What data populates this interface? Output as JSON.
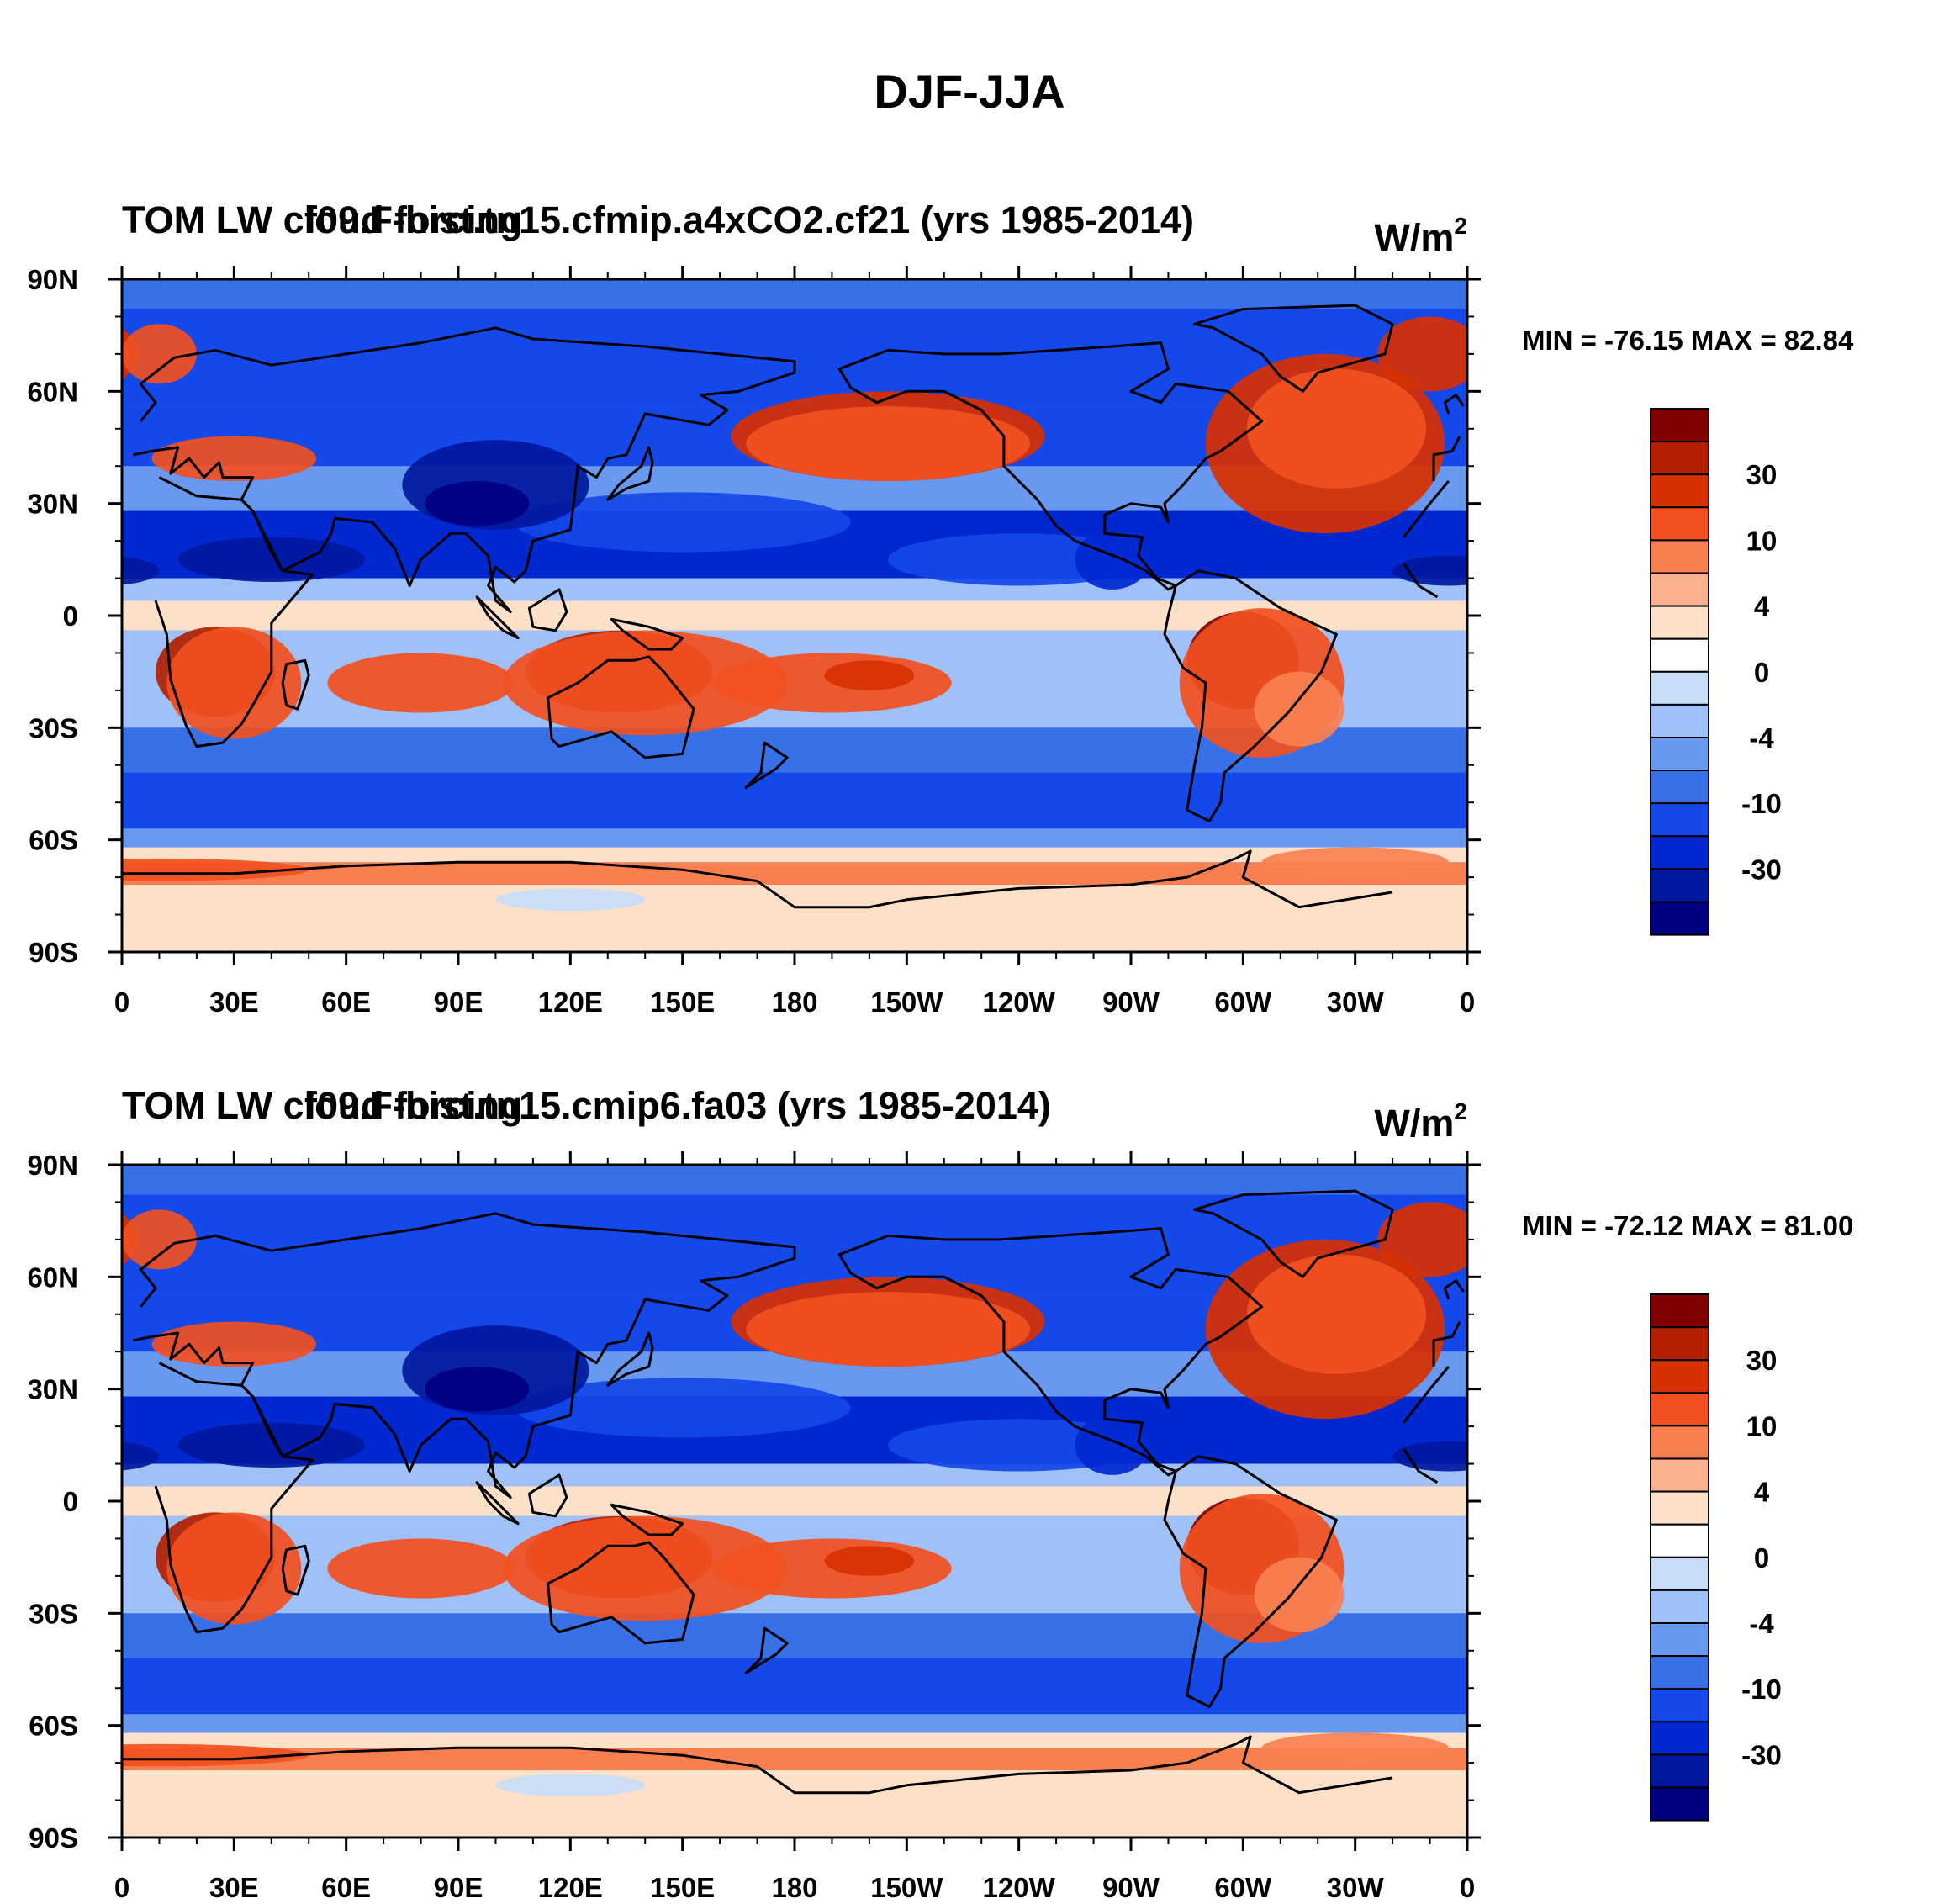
{
  "figure_title": "DJF-JJA",
  "panels": [
    {
      "left_title": "TOM LW cloud forcing",
      "center_title": "f09.F-hist.tn15.cfmip.a4xCO2.cf21 (yrs 1985-2014)",
      "units_base": "W/m",
      "units_exp": "2",
      "min_max": "MIN = -76.15 MAX =  82.84"
    },
    {
      "left_title": "TOM LW cloud forcing",
      "center_title": "f09.F-hist.tn15.cmip6.fa03 (yrs 1985-2014)",
      "units_base": "W/m",
      "units_exp": "2",
      "min_max": "MIN = -72.12 MAX =  81.00"
    }
  ],
  "axes": {
    "lat_labels": [
      "90N",
      "60N",
      "30N",
      "0",
      "30S",
      "60S",
      "90S"
    ],
    "lon_labels": [
      "0",
      "30E",
      "60E",
      "90E",
      "120E",
      "150E",
      "180",
      "150W",
      "120W",
      "90W",
      "60W",
      "30W",
      "0"
    ]
  },
  "colorbar": {
    "labels": [
      "30",
      "10",
      "4",
      "0",
      "-4",
      "-10",
      "-30"
    ],
    "colors": [
      "#800000",
      "#b22000",
      "#d83000",
      "#f25020",
      "#f88050",
      "#fcb090",
      "#fce0c8",
      "#ffffff",
      "#c8dcf8",
      "#a0c0f8",
      "#6898f0",
      "#3870e8",
      "#1448e8",
      "#0028d0",
      "#0018a0",
      "#000080"
    ]
  },
  "chart_data": {
    "type": "heatmap",
    "title": "DJF-JJA",
    "variable": "TOM LW cloud forcing",
    "units": "W/m2",
    "x_range": [
      0,
      360
    ],
    "y_range": [
      -90,
      90
    ],
    "contour_levels": [
      -30,
      -10,
      -4,
      0,
      4,
      10,
      30
    ],
    "panels": [
      {
        "case": "f09.F-hist.tn15.cfmip.a4xCO2.cf21 (yrs 1985-2014)",
        "min": -76.15,
        "max": 82.84
      },
      {
        "case": "f09.F-hist.tn15.cmip6.fa03 (yrs 1985-2014)",
        "min": -72.12,
        "max": 81.0
      }
    ]
  }
}
